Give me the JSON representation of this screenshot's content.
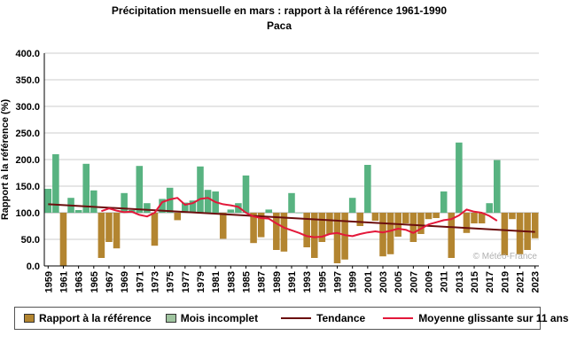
{
  "chart_data": {
    "type": "bar",
    "title": "Précipitation mensuelle en mars : rapport à la référence 1961-1990",
    "subtitle": "Paca",
    "ylabel": "Rapport à la référence (%)",
    "xlabel": "",
    "ylim": [
      0,
      400
    ],
    "baseline": 100,
    "yticks": [
      "0.0",
      "50.0",
      "100.0",
      "150.0",
      "200.0",
      "250.0",
      "300.0",
      "350.0",
      "400.0"
    ],
    "ytick_values": [
      0,
      50,
      100,
      150,
      200,
      250,
      300,
      350,
      400
    ],
    "years": [
      1959,
      1960,
      1961,
      1962,
      1963,
      1964,
      1965,
      1966,
      1967,
      1968,
      1969,
      1970,
      1971,
      1972,
      1973,
      1974,
      1975,
      1976,
      1977,
      1978,
      1979,
      1980,
      1981,
      1982,
      1983,
      1984,
      1985,
      1986,
      1987,
      1988,
      1989,
      1990,
      1991,
      1992,
      1993,
      1994,
      1995,
      1996,
      1997,
      1998,
      1999,
      2000,
      2001,
      2002,
      2003,
      2004,
      2005,
      2006,
      2007,
      2008,
      2009,
      2010,
      2011,
      2012,
      2013,
      2014,
      2015,
      2016,
      2017,
      2018,
      2019,
      2020,
      2021,
      2022,
      2023
    ],
    "values": [
      145,
      210,
      0,
      128,
      105,
      192,
      142,
      15,
      45,
      33,
      137,
      105,
      188,
      118,
      38,
      126,
      147,
      86,
      119,
      123,
      187,
      143,
      140,
      51,
      106,
      118,
      170,
      43,
      54,
      106,
      30,
      27,
      137,
      100,
      35,
      15,
      45,
      60,
      5,
      12,
      128,
      75,
      190,
      85,
      18,
      22,
      55,
      80,
      45,
      60,
      88,
      90,
      140,
      15,
      232,
      62,
      80,
      80,
      118,
      199,
      20,
      88,
      22,
      30,
      52
    ],
    "x_tick_labels": [
      "1959",
      "1961",
      "1963",
      "1965",
      "1967",
      "1969",
      "1971",
      "1973",
      "1975",
      "1977",
      "1979",
      "1981",
      "1983",
      "1985",
      "1987",
      "1989",
      "1991",
      "1993",
      "1995",
      "1997",
      "1999",
      "2001",
      "2003",
      "2005",
      "2007",
      "2009",
      "2011",
      "2013",
      "2015",
      "2017",
      "2019",
      "2021",
      "2023"
    ],
    "trend": {
      "start": [
        1959,
        116
      ],
      "end": [
        2023,
        64
      ]
    },
    "moving_average": {
      "x": [
        1966,
        1967,
        1968,
        1969,
        1970,
        1971,
        1972,
        1973,
        1974,
        1975,
        1976,
        1977,
        1978,
        1979,
        1980,
        1981,
        1982,
        1983,
        1984,
        1985,
        1986,
        1987,
        1988,
        1989,
        1990,
        1991,
        1992,
        1993,
        1994,
        1995,
        1996,
        1997,
        1998,
        1999,
        2000,
        2001,
        2002,
        2003,
        2004,
        2005,
        2006,
        2007,
        2008,
        2009,
        2010,
        2011,
        2012,
        2013,
        2014,
        2015,
        2016,
        2017,
        2018
      ],
      "y": [
        103,
        108,
        104,
        101,
        102,
        96,
        93,
        100,
        120,
        125,
        128,
        115,
        118,
        126,
        128,
        120,
        116,
        114,
        111,
        100,
        93,
        90,
        89,
        80,
        72,
        67,
        62,
        56,
        54,
        55,
        60,
        62,
        58,
        56,
        60,
        63,
        65,
        63,
        66,
        70,
        68,
        62,
        70,
        78,
        82,
        86,
        88,
        95,
        106,
        102,
        100,
        94,
        85
      ]
    },
    "legend": {
      "position": "bottom",
      "items": [
        {
          "label": "Rapport à la référence",
          "kind": "box",
          "color": "#b38530"
        },
        {
          "label": "Mois incomplet",
          "kind": "box",
          "color": "#9fc49f"
        },
        {
          "label": "Tendance",
          "kind": "line",
          "color": "#6b0e0e"
        },
        {
          "label": "Moyenne glissante sur 11 ans",
          "kind": "line",
          "color": "#e3183a"
        }
      ]
    },
    "watermark": "© Météo-France",
    "colors": {
      "above": "#58b381",
      "below": "#b38530",
      "trend": "#6b0e0e",
      "moving_average": "#e3183a",
      "grid": "#cccccc"
    },
    "grid": true
  }
}
